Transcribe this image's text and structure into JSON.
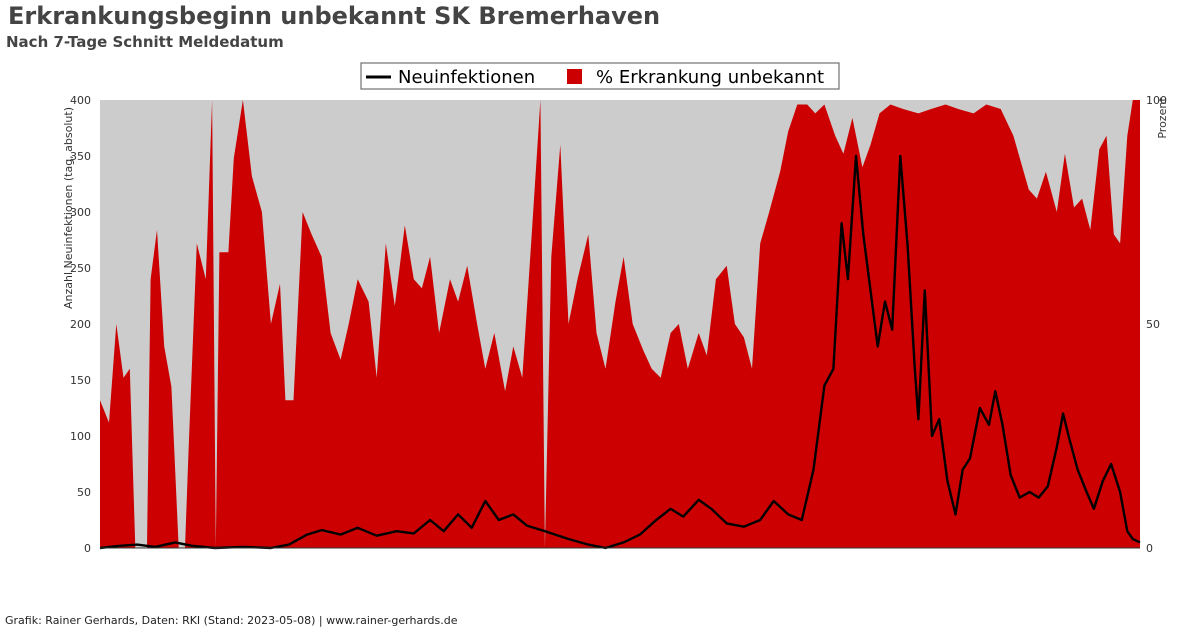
{
  "title": "Erkrankungsbeginn unbekannt SK Bremerhaven",
  "subtitle": "Nach 7-Tage Schnitt Meldedatum",
  "footer": "Grafik: Rainer Gerhards, Daten: RKI (Stand: 2023-05-08) | www.rainer-gerhards.de",
  "legend": {
    "line_label": "Neuinfektionen",
    "area_label": "% Erkrankung unbekannt"
  },
  "colors": {
    "plot_background": "#cccccc",
    "area": "#cc0000",
    "line": "#000000"
  },
  "chart_data": {
    "type": "area",
    "x_range": [
      "2020-03-10",
      "2023-05-04"
    ],
    "y_left": {
      "label": "Anzahl Neuinfektionen (tag, absolut)",
      "range": [
        0,
        400
      ],
      "ticks": [
        0,
        50,
        100,
        150,
        200,
        250,
        300,
        350,
        400
      ]
    },
    "y_right": {
      "label": "Prozent",
      "range": [
        0,
        100
      ],
      "ticks": [
        0,
        50,
        100
      ]
    },
    "grid": false,
    "legend_position": "top-center",
    "series": [
      {
        "name": "Neuinfektionen",
        "kind": "line",
        "axis": "left",
        "points": [
          [
            "2020-03-10",
            0
          ],
          [
            "2020-04-01",
            2
          ],
          [
            "2020-04-20",
            3
          ],
          [
            "2020-05-10",
            1
          ],
          [
            "2020-06-01",
            5
          ],
          [
            "2020-06-20",
            2
          ],
          [
            "2020-07-15",
            0
          ],
          [
            "2020-08-15",
            1
          ],
          [
            "2020-09-15",
            0
          ],
          [
            "2020-10-05",
            3
          ],
          [
            "2020-10-25",
            12
          ],
          [
            "2020-11-10",
            16
          ],
          [
            "2020-12-01",
            12
          ],
          [
            "2020-12-20",
            18
          ],
          [
            "2021-01-10",
            11
          ],
          [
            "2021-02-01",
            15
          ],
          [
            "2021-02-20",
            13
          ],
          [
            "2021-03-10",
            25
          ],
          [
            "2021-03-25",
            15
          ],
          [
            "2021-04-10",
            30
          ],
          [
            "2021-04-25",
            18
          ],
          [
            "2021-05-10",
            42
          ],
          [
            "2021-05-25",
            25
          ],
          [
            "2021-06-10",
            30
          ],
          [
            "2021-06-25",
            20
          ],
          [
            "2021-07-15",
            15
          ],
          [
            "2021-08-10",
            8
          ],
          [
            "2021-09-01",
            3
          ],
          [
            "2021-09-20",
            0
          ],
          [
            "2021-10-10",
            5
          ],
          [
            "2021-10-28",
            12
          ],
          [
            "2021-11-15",
            25
          ],
          [
            "2021-12-01",
            35
          ],
          [
            "2021-12-15",
            28
          ],
          [
            "2022-01-01",
            43
          ],
          [
            "2022-01-15",
            35
          ],
          [
            "2022-02-01",
            22
          ],
          [
            "2022-02-20",
            19
          ],
          [
            "2022-03-10",
            25
          ],
          [
            "2022-03-25",
            42
          ],
          [
            "2022-04-10",
            30
          ],
          [
            "2022-04-25",
            25
          ],
          [
            "2022-05-08",
            70
          ],
          [
            "2022-05-20",
            145
          ],
          [
            "2022-05-30",
            160
          ],
          [
            "2022-06-08",
            290
          ],
          [
            "2022-06-15",
            240
          ],
          [
            "2022-06-24",
            350
          ],
          [
            "2022-07-02",
            280
          ],
          [
            "2022-07-10",
            230
          ],
          [
            "2022-07-18",
            180
          ],
          [
            "2022-07-26",
            220
          ],
          [
            "2022-08-03",
            195
          ],
          [
            "2022-08-12",
            350
          ],
          [
            "2022-08-20",
            270
          ],
          [
            "2022-08-28",
            160
          ],
          [
            "2022-09-01",
            115
          ],
          [
            "2022-09-08",
            230
          ],
          [
            "2022-09-16",
            100
          ],
          [
            "2022-09-24",
            115
          ],
          [
            "2022-10-03",
            60
          ],
          [
            "2022-10-12",
            30
          ],
          [
            "2022-10-20",
            70
          ],
          [
            "2022-10-28",
            80
          ],
          [
            "2022-11-08",
            125
          ],
          [
            "2022-11-18",
            110
          ],
          [
            "2022-11-25",
            140
          ],
          [
            "2022-12-03",
            110
          ],
          [
            "2022-12-12",
            65
          ],
          [
            "2022-12-22",
            45
          ],
          [
            "2023-01-02",
            50
          ],
          [
            "2023-01-12",
            45
          ],
          [
            "2023-01-22",
            55
          ],
          [
            "2023-02-01",
            90
          ],
          [
            "2023-02-08",
            120
          ],
          [
            "2023-02-14",
            100
          ],
          [
            "2023-02-24",
            70
          ],
          [
            "2023-03-06",
            50
          ],
          [
            "2023-03-14",
            35
          ],
          [
            "2023-03-24",
            60
          ],
          [
            "2023-04-02",
            75
          ],
          [
            "2023-04-12",
            50
          ],
          [
            "2023-04-20",
            15
          ],
          [
            "2023-04-26",
            8
          ],
          [
            "2023-05-04",
            5
          ]
        ]
      },
      {
        "name": "% Erkrankung unbekannt",
        "kind": "area",
        "axis": "right",
        "points": [
          [
            "2020-03-10",
            33
          ],
          [
            "2020-03-20",
            28
          ],
          [
            "2020-03-28",
            50
          ],
          [
            "2020-04-05",
            38
          ],
          [
            "2020-04-12",
            40
          ],
          [
            "2020-04-18",
            0
          ],
          [
            "2020-05-01",
            0
          ],
          [
            "2020-05-05",
            60
          ],
          [
            "2020-05-12",
            71
          ],
          [
            "2020-05-20",
            45
          ],
          [
            "2020-05-28",
            36
          ],
          [
            "2020-06-05",
            0
          ],
          [
            "2020-06-12",
            0
          ],
          [
            "2020-06-16",
            22
          ],
          [
            "2020-06-25",
            68
          ],
          [
            "2020-07-05",
            60
          ],
          [
            "2020-07-12",
            100
          ],
          [
            "2020-07-16",
            0
          ],
          [
            "2020-07-20",
            66
          ],
          [
            "2020-07-30",
            66
          ],
          [
            "2020-08-05",
            87
          ],
          [
            "2020-08-15",
            100
          ],
          [
            "2020-08-25",
            83
          ],
          [
            "2020-09-05",
            75
          ],
          [
            "2020-09-15",
            50
          ],
          [
            "2020-09-25",
            59
          ],
          [
            "2020-10-01",
            33
          ],
          [
            "2020-10-10",
            33
          ],
          [
            "2020-10-20",
            75
          ],
          [
            "2020-10-30",
            70
          ],
          [
            "2020-11-10",
            65
          ],
          [
            "2020-11-20",
            48
          ],
          [
            "2020-12-01",
            42
          ],
          [
            "2020-12-10",
            50
          ],
          [
            "2020-12-20",
            60
          ],
          [
            "2021-01-01",
            55
          ],
          [
            "2021-01-10",
            38
          ],
          [
            "2021-01-20",
            68
          ],
          [
            "2021-01-30",
            54
          ],
          [
            "2021-02-10",
            72
          ],
          [
            "2021-02-20",
            60
          ],
          [
            "2021-03-01",
            58
          ],
          [
            "2021-03-10",
            65
          ],
          [
            "2021-03-20",
            48
          ],
          [
            "2021-04-01",
            60
          ],
          [
            "2021-04-10",
            55
          ],
          [
            "2021-04-20",
            63
          ],
          [
            "2021-05-01",
            50
          ],
          [
            "2021-05-10",
            40
          ],
          [
            "2021-05-20",
            48
          ],
          [
            "2021-06-01",
            35
          ],
          [
            "2021-06-10",
            45
          ],
          [
            "2021-06-20",
            38
          ],
          [
            "2021-07-01",
            72
          ],
          [
            "2021-07-10",
            100
          ],
          [
            "2021-07-15",
            0
          ],
          [
            "2021-07-22",
            65
          ],
          [
            "2021-08-01",
            90
          ],
          [
            "2021-08-10",
            50
          ],
          [
            "2021-08-20",
            60
          ],
          [
            "2021-09-01",
            70
          ],
          [
            "2021-09-10",
            48
          ],
          [
            "2021-09-20",
            40
          ],
          [
            "2021-10-01",
            55
          ],
          [
            "2021-10-10",
            65
          ],
          [
            "2021-10-20",
            50
          ],
          [
            "2021-11-01",
            44
          ],
          [
            "2021-11-10",
            40
          ],
          [
            "2021-11-20",
            38
          ],
          [
            "2021-12-01",
            48
          ],
          [
            "2021-12-10",
            50
          ],
          [
            "2021-12-20",
            40
          ],
          [
            "2022-01-01",
            48
          ],
          [
            "2022-01-10",
            43
          ],
          [
            "2022-01-20",
            60
          ],
          [
            "2022-02-01",
            63
          ],
          [
            "2022-02-10",
            50
          ],
          [
            "2022-02-20",
            47
          ],
          [
            "2022-03-01",
            40
          ],
          [
            "2022-03-10",
            68
          ],
          [
            "2022-03-20",
            75
          ],
          [
            "2022-04-01",
            84
          ],
          [
            "2022-04-10",
            93
          ],
          [
            "2022-04-20",
            99
          ],
          [
            "2022-05-01",
            99
          ],
          [
            "2022-05-10",
            97
          ],
          [
            "2022-05-20",
            99
          ],
          [
            "2022-06-01",
            92
          ],
          [
            "2022-06-10",
            88
          ],
          [
            "2022-06-20",
            96
          ],
          [
            "2022-07-01",
            85
          ],
          [
            "2022-07-10",
            90
          ],
          [
            "2022-07-20",
            97
          ],
          [
            "2022-08-01",
            99
          ],
          [
            "2022-08-15",
            98
          ],
          [
            "2022-09-01",
            97
          ],
          [
            "2022-09-15",
            98
          ],
          [
            "2022-10-01",
            99
          ],
          [
            "2022-10-15",
            98
          ],
          [
            "2022-11-01",
            97
          ],
          [
            "2022-11-15",
            99
          ],
          [
            "2022-12-01",
            98
          ],
          [
            "2022-12-15",
            92
          ],
          [
            "2023-01-01",
            80
          ],
          [
            "2023-01-10",
            78
          ],
          [
            "2023-01-20",
            84
          ],
          [
            "2023-02-01",
            75
          ],
          [
            "2023-02-10",
            88
          ],
          [
            "2023-02-20",
            76
          ],
          [
            "2023-03-01",
            78
          ],
          [
            "2023-03-10",
            71
          ],
          [
            "2023-03-20",
            89
          ],
          [
            "2023-03-28",
            92
          ],
          [
            "2023-04-05",
            70
          ],
          [
            "2023-04-12",
            68
          ],
          [
            "2023-04-20",
            92
          ],
          [
            "2023-04-26",
            100
          ],
          [
            "2023-05-04",
            100
          ]
        ]
      }
    ]
  }
}
